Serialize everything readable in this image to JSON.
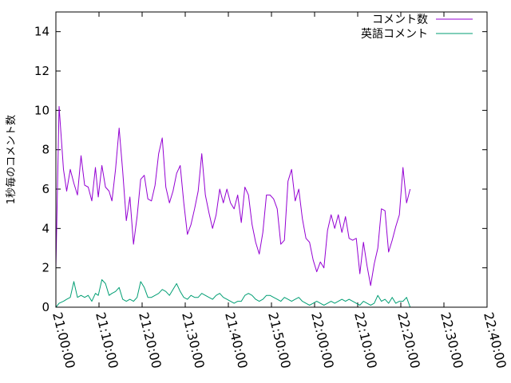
{
  "chart_data": {
    "type": "line",
    "title": "",
    "xlabel": "",
    "ylabel": "1秒毎のコメント数",
    "xlim": [
      "21:00:00",
      "22:40:00"
    ],
    "ylim": [
      0,
      15
    ],
    "xticks": [
      "21:00:00",
      "21:10:00",
      "21:20:00",
      "21:30:00",
      "21:40:00",
      "21:50:00",
      "22:00:00",
      "22:10:00",
      "22:20:00",
      "22:30:00",
      "22:40:00"
    ],
    "yticks": [
      "0",
      "2",
      "4",
      "6",
      "8",
      "10",
      "12",
      "14"
    ],
    "grid": false,
    "legend_position": "top-right",
    "x_time": [
      "21:00:00",
      "21:00:30",
      "21:01:00",
      "21:01:30",
      "21:02:00",
      "21:02:30",
      "21:03:00",
      "21:03:30",
      "21:04:00",
      "21:04:30",
      "21:05:00",
      "21:05:30",
      "21:06:00",
      "21:06:30",
      "21:07:00",
      "21:07:30",
      "21:08:00",
      "21:08:30",
      "21:09:00",
      "21:09:30",
      "21:10:00",
      "21:10:30",
      "21:11:00",
      "21:11:30",
      "21:12:00",
      "21:12:30",
      "21:13:00",
      "21:13:30",
      "21:14:00",
      "21:14:30",
      "21:15:00",
      "21:15:30",
      "21:16:00",
      "21:16:30",
      "21:17:00",
      "21:17:30",
      "21:18:00",
      "21:18:30",
      "21:19:00",
      "21:19:30",
      "21:20:00",
      "21:20:30",
      "21:21:00",
      "21:21:30",
      "21:22:00",
      "21:22:30",
      "21:23:00",
      "21:23:30",
      "21:24:00",
      "21:24:30",
      "21:25:00",
      "21:25:30",
      "21:26:00",
      "21:26:30",
      "21:27:00",
      "21:27:30",
      "21:28:00",
      "21:28:30",
      "21:29:00",
      "21:29:30",
      "21:30:00",
      "21:30:30",
      "21:31:00",
      "21:31:30",
      "21:32:00",
      "21:32:30",
      "21:33:00",
      "21:33:30",
      "21:34:00",
      "21:34:30",
      "21:35:00",
      "21:35:30",
      "21:36:00",
      "21:36:30",
      "21:37:00",
      "21:37:30",
      "21:38:00",
      "21:38:30",
      "21:39:00",
      "21:39:30",
      "21:40:00",
      "21:40:30",
      "21:41:00",
      "21:41:30",
      "21:42:00",
      "21:42:30",
      "21:43:00",
      "21:43:30",
      "21:44:00",
      "21:44:30",
      "21:45:00",
      "21:45:30",
      "21:46:00",
      "21:46:30",
      "21:47:00",
      "21:47:30",
      "21:48:00",
      "21:48:30",
      "21:49:00",
      "21:49:30",
      "21:50:00",
      "21:50:30",
      "21:51:00",
      "21:51:30",
      "21:52:00",
      "21:52:30",
      "21:53:00",
      "21:53:30",
      "21:54:00",
      "21:54:30",
      "21:55:00",
      "21:55:30",
      "21:56:00",
      "21:56:30",
      "21:57:00",
      "21:57:30",
      "21:58:00",
      "21:58:30",
      "21:59:00",
      "21:59:30",
      "22:00:00",
      "22:00:30",
      "22:01:00",
      "22:01:30",
      "22:02:00",
      "22:02:30",
      "22:03:00",
      "22:03:30",
      "22:04:00",
      "22:04:30",
      "22:05:00",
      "22:05:30",
      "22:06:00",
      "22:06:30",
      "22:07:00",
      "22:07:30",
      "22:08:00",
      "22:08:30",
      "22:09:00",
      "22:09:30",
      "22:10:00",
      "22:10:30",
      "22:11:00",
      "22:11:30",
      "22:12:00",
      "22:12:30",
      "22:13:00",
      "22:13:30",
      "22:14:00",
      "22:14:30",
      "22:15:00",
      "22:15:30",
      "22:16:00",
      "22:16:30",
      "22:17:00",
      "22:17:30",
      "22:18:00",
      "22:18:30",
      "22:19:00",
      "22:19:30",
      "22:20:00",
      "22:20:30",
      "22:21:00",
      "22:21:30",
      "22:22:00",
      "22:22:30",
      "22:23:00",
      "22:23:30",
      "22:24:00",
      "22:24:30",
      "22:25:00",
      "22:25:30",
      "22:26:00",
      "22:26:30",
      "22:27:00",
      "22:27:30",
      "22:28:00",
      "22:28:30",
      "22:29:00",
      "22:29:30",
      "22:30:00",
      "22:30:30",
      "22:31:00",
      "22:31:30",
      "22:32:00",
      "22:32:30",
      "22:33:00",
      "22:33:30",
      "22:34:00",
      "22:34:30",
      "22:35:00",
      "22:35:30",
      "22:36:00",
      "22:36:30",
      "22:37:00",
      "22:37:30",
      "22:38:00",
      "22:38:30",
      "22:39:00",
      "22:39:30",
      "22:40:00"
    ],
    "series": [
      {
        "name": "コメント数",
        "color": "#9400d3",
        "points": [
          [
            "21:00:00",
            2.0
          ],
          [
            "21:00:45",
            10.2
          ],
          [
            "21:01:45",
            7.0
          ],
          [
            "21:02:30",
            5.9
          ],
          [
            "21:03:20",
            7.0
          ],
          [
            "21:04:10",
            6.3
          ],
          [
            "21:05:00",
            5.7
          ],
          [
            "21:05:50",
            7.7
          ],
          [
            "21:06:40",
            6.2
          ],
          [
            "21:07:30",
            6.1
          ],
          [
            "21:08:20",
            5.4
          ],
          [
            "21:09:10",
            7.1
          ],
          [
            "21:09:50",
            5.6
          ],
          [
            "21:10:40",
            7.2
          ],
          [
            "21:11:30",
            6.1
          ],
          [
            "21:12:20",
            5.9
          ],
          [
            "21:13:00",
            5.4
          ],
          [
            "21:13:50",
            7.0
          ],
          [
            "21:14:40",
            9.1
          ],
          [
            "21:15:30",
            6.9
          ],
          [
            "21:16:20",
            4.4
          ],
          [
            "21:17:10",
            5.6
          ],
          [
            "21:18:00",
            3.2
          ],
          [
            "21:18:50",
            4.6
          ],
          [
            "21:19:40",
            6.5
          ],
          [
            "21:20:30",
            6.7
          ],
          [
            "21:21:20",
            5.5
          ],
          [
            "21:22:10",
            5.4
          ],
          [
            "21:23:00",
            6.2
          ],
          [
            "21:23:50",
            7.8
          ],
          [
            "21:24:40",
            8.6
          ],
          [
            "21:25:30",
            6.1
          ],
          [
            "21:26:20",
            5.3
          ],
          [
            "21:27:10",
            5.9
          ],
          [
            "21:28:00",
            6.8
          ],
          [
            "21:28:50",
            7.2
          ],
          [
            "21:29:40",
            5.3
          ],
          [
            "21:30:30",
            3.7
          ],
          [
            "21:31:20",
            4.2
          ],
          [
            "21:32:10",
            5.0
          ],
          [
            "21:33:00",
            5.9
          ],
          [
            "21:33:50",
            7.8
          ],
          [
            "21:34:40",
            5.7
          ],
          [
            "21:35:30",
            4.8
          ],
          [
            "21:36:20",
            4.0
          ],
          [
            "21:37:10",
            4.7
          ],
          [
            "21:38:00",
            6.0
          ],
          [
            "21:38:50",
            5.3
          ],
          [
            "21:39:40",
            6.0
          ],
          [
            "21:40:30",
            5.3
          ],
          [
            "21:41:20",
            5.0
          ],
          [
            "21:42:10",
            5.7
          ],
          [
            "21:43:00",
            4.3
          ],
          [
            "21:43:50",
            6.1
          ],
          [
            "21:44:40",
            5.7
          ],
          [
            "21:45:30",
            4.2
          ],
          [
            "21:46:20",
            3.3
          ],
          [
            "21:47:10",
            2.7
          ],
          [
            "21:48:00",
            3.8
          ],
          [
            "21:48:50",
            5.7
          ],
          [
            "21:49:40",
            5.7
          ],
          [
            "21:50:30",
            5.5
          ],
          [
            "21:51:20",
            5.0
          ],
          [
            "21:52:10",
            3.2
          ],
          [
            "21:53:00",
            3.4
          ],
          [
            "21:53:50",
            6.4
          ],
          [
            "21:54:40",
            7.0
          ],
          [
            "21:55:30",
            5.4
          ],
          [
            "21:56:20",
            6.0
          ],
          [
            "21:57:10",
            4.5
          ],
          [
            "21:58:00",
            3.5
          ],
          [
            "21:58:50",
            3.3
          ],
          [
            "21:59:40",
            2.4
          ],
          [
            "22:00:30",
            1.8
          ],
          [
            "22:01:20",
            2.3
          ],
          [
            "22:02:10",
            2.0
          ],
          [
            "22:03:00",
            3.9
          ],
          [
            "22:03:50",
            4.7
          ],
          [
            "22:04:40",
            4.0
          ],
          [
            "22:05:30",
            4.7
          ],
          [
            "22:06:20",
            3.8
          ],
          [
            "22:07:10",
            4.6
          ],
          [
            "22:08:00",
            3.5
          ],
          [
            "22:08:50",
            3.4
          ],
          [
            "22:09:40",
            3.5
          ],
          [
            "22:10:30",
            1.7
          ],
          [
            "22:11:20",
            3.3
          ],
          [
            "22:12:10",
            2.1
          ],
          [
            "22:13:00",
            1.1
          ],
          [
            "22:13:50",
            2.2
          ],
          [
            "22:14:40",
            3.0
          ],
          [
            "22:15:30",
            5.0
          ],
          [
            "22:16:20",
            4.9
          ],
          [
            "22:17:10",
            2.8
          ],
          [
            "22:18:00",
            3.4
          ],
          [
            "22:18:50",
            4.1
          ],
          [
            "22:19:40",
            4.7
          ],
          [
            "22:20:30",
            7.1
          ],
          [
            "22:21:20",
            5.3
          ],
          [
            "22:22:10",
            6.0
          ]
        ]
      },
      {
        "name": "英語コメント",
        "color": "#009e73",
        "points": [
          [
            "21:00:00",
            0.0
          ],
          [
            "21:00:45",
            0.2
          ],
          [
            "21:01:45",
            0.3
          ],
          [
            "21:02:30",
            0.4
          ],
          [
            "21:03:20",
            0.5
          ],
          [
            "21:04:10",
            1.3
          ],
          [
            "21:05:00",
            0.5
          ],
          [
            "21:05:50",
            0.6
          ],
          [
            "21:06:40",
            0.5
          ],
          [
            "21:07:30",
            0.6
          ],
          [
            "21:08:20",
            0.3
          ],
          [
            "21:09:10",
            0.7
          ],
          [
            "21:09:50",
            0.6
          ],
          [
            "21:10:40",
            1.4
          ],
          [
            "21:11:30",
            1.2
          ],
          [
            "21:12:20",
            0.6
          ],
          [
            "21:13:00",
            0.7
          ],
          [
            "21:13:50",
            0.8
          ],
          [
            "21:14:40",
            1.0
          ],
          [
            "21:15:30",
            0.4
          ],
          [
            "21:16:20",
            0.3
          ],
          [
            "21:17:10",
            0.4
          ],
          [
            "21:18:00",
            0.3
          ],
          [
            "21:18:50",
            0.5
          ],
          [
            "21:19:40",
            1.3
          ],
          [
            "21:20:30",
            1.0
          ],
          [
            "21:21:20",
            0.5
          ],
          [
            "21:22:10",
            0.5
          ],
          [
            "21:23:00",
            0.6
          ],
          [
            "21:23:50",
            0.7
          ],
          [
            "21:24:40",
            0.9
          ],
          [
            "21:25:30",
            0.8
          ],
          [
            "21:26:20",
            0.6
          ],
          [
            "21:27:10",
            0.9
          ],
          [
            "21:28:00",
            1.2
          ],
          [
            "21:28:50",
            0.8
          ],
          [
            "21:29:40",
            0.5
          ],
          [
            "21:30:30",
            0.4
          ],
          [
            "21:31:20",
            0.6
          ],
          [
            "21:32:10",
            0.5
          ],
          [
            "21:33:00",
            0.5
          ],
          [
            "21:33:50",
            0.7
          ],
          [
            "21:34:40",
            0.6
          ],
          [
            "21:35:30",
            0.5
          ],
          [
            "21:36:20",
            0.4
          ],
          [
            "21:37:10",
            0.6
          ],
          [
            "21:38:00",
            0.7
          ],
          [
            "21:38:50",
            0.5
          ],
          [
            "21:39:40",
            0.4
          ],
          [
            "21:40:30",
            0.3
          ],
          [
            "21:41:20",
            0.2
          ],
          [
            "21:42:10",
            0.3
          ],
          [
            "21:43:00",
            0.3
          ],
          [
            "21:43:50",
            0.6
          ],
          [
            "21:44:40",
            0.7
          ],
          [
            "21:45:30",
            0.6
          ],
          [
            "21:46:20",
            0.4
          ],
          [
            "21:47:10",
            0.3
          ],
          [
            "21:48:00",
            0.4
          ],
          [
            "21:48:50",
            0.6
          ],
          [
            "21:49:40",
            0.6
          ],
          [
            "21:50:30",
            0.5
          ],
          [
            "21:51:20",
            0.4
          ],
          [
            "21:52:10",
            0.3
          ],
          [
            "21:53:00",
            0.5
          ],
          [
            "21:53:50",
            0.4
          ],
          [
            "21:54:40",
            0.3
          ],
          [
            "21:55:30",
            0.4
          ],
          [
            "21:56:20",
            0.5
          ],
          [
            "21:57:10",
            0.3
          ],
          [
            "21:58:00",
            0.2
          ],
          [
            "21:58:50",
            0.1
          ],
          [
            "21:59:40",
            0.2
          ],
          [
            "22:00:30",
            0.3
          ],
          [
            "22:01:20",
            0.2
          ],
          [
            "22:02:10",
            0.1
          ],
          [
            "22:03:00",
            0.2
          ],
          [
            "22:03:50",
            0.3
          ],
          [
            "22:04:40",
            0.2
          ],
          [
            "22:05:30",
            0.3
          ],
          [
            "22:06:20",
            0.4
          ],
          [
            "22:07:10",
            0.3
          ],
          [
            "22:08:00",
            0.4
          ],
          [
            "22:08:50",
            0.3
          ],
          [
            "22:09:40",
            0.2
          ],
          [
            "22:10:30",
            0.1
          ],
          [
            "22:11:20",
            0.3
          ],
          [
            "22:12:10",
            0.2
          ],
          [
            "22:13:00",
            0.1
          ],
          [
            "22:13:50",
            0.2
          ],
          [
            "22:14:40",
            0.6
          ],
          [
            "22:15:30",
            0.3
          ],
          [
            "22:16:20",
            0.4
          ],
          [
            "22:17:10",
            0.2
          ],
          [
            "22:18:00",
            0.5
          ],
          [
            "22:18:50",
            0.2
          ],
          [
            "22:19:40",
            0.3
          ],
          [
            "22:20:30",
            0.3
          ],
          [
            "22:21:20",
            0.5
          ],
          [
            "22:22:10",
            0.0
          ]
        ]
      }
    ]
  }
}
